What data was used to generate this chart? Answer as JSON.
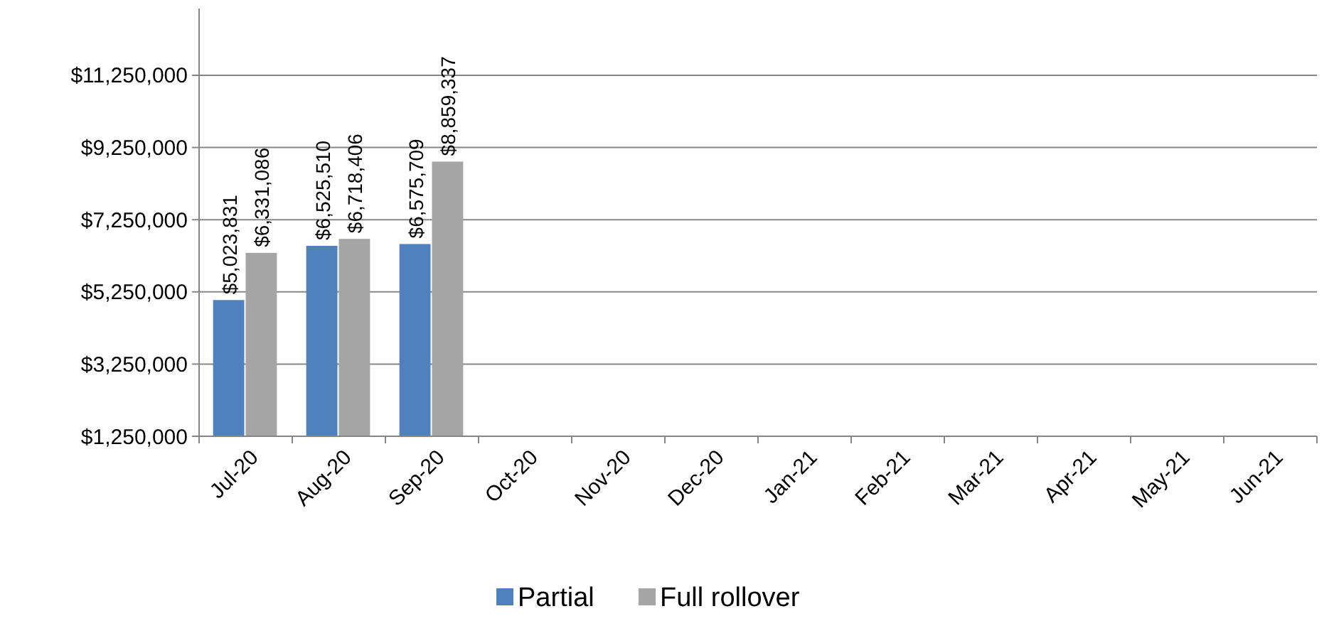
{
  "chart_data": {
    "type": "bar",
    "categories": [
      "Jul-20",
      "Aug-20",
      "Sep-20",
      "Oct-20",
      "Nov-20",
      "Dec-20",
      "Jan-21",
      "Feb-21",
      "Mar-21",
      "Apr-21",
      "May-21",
      "Jun-21"
    ],
    "series": [
      {
        "name": "Partial",
        "color": "#4f81bd",
        "values": [
          5023831,
          6525510,
          6575709,
          null,
          null,
          null,
          null,
          null,
          null,
          null,
          null,
          null
        ]
      },
      {
        "name": "Full rollover",
        "color": "#a5a5a5",
        "values": [
          6331086,
          6718406,
          8859337,
          null,
          null,
          null,
          null,
          null,
          null,
          null,
          null,
          null
        ]
      }
    ],
    "ylim": [
      1250000,
      13100000
    ],
    "yticks": [
      {
        "value": 1250000,
        "label": "$1,250,000"
      },
      {
        "value": 3250000,
        "label": "$3,250,000"
      },
      {
        "value": 5250000,
        "label": "$5,250,000"
      },
      {
        "value": 7250000,
        "label": "$7,250,000"
      },
      {
        "value": 9250000,
        "label": "$9,250,000"
      },
      {
        "value": 11250000,
        "label": "$11,250,000"
      }
    ],
    "value_labels": [
      [
        "$5,023,831",
        "$6,525,510",
        "$6,575,709"
      ],
      [
        "$6,331,086",
        "$6,718,406",
        "$8,859,337"
      ]
    ],
    "grid": "y",
    "legend": "bottom"
  }
}
